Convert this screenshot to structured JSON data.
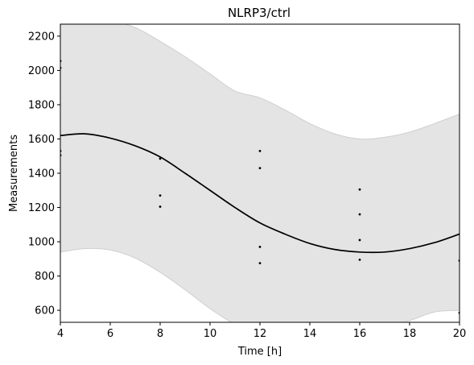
{
  "chart_data": {
    "type": "line",
    "title": "NLRP3/ctrl",
    "xlabel": "Time [h]",
    "ylabel": "Measurements",
    "xlim": [
      4,
      20
    ],
    "ylim": [
      530,
      2270
    ],
    "xticks": [
      "4",
      "6",
      "8",
      "10",
      "12",
      "14",
      "16",
      "18",
      "20"
    ],
    "yticks": [
      "600",
      "800",
      "1000",
      "1200",
      "1400",
      "1600",
      "1800",
      "2000",
      "2200"
    ],
    "grid": false,
    "colors": {
      "fit_line": "#000000",
      "band_fill": "#e4e4e4",
      "band_edge": "#cfcfcf",
      "points": "#000000"
    },
    "series": [
      {
        "type": "band",
        "x": [
          4,
          5,
          6,
          7,
          8,
          9,
          10,
          11,
          12,
          13,
          14,
          15,
          16,
          17,
          18,
          19,
          20
        ],
        "lower": [
          940,
          960,
          952,
          905,
          822,
          720,
          610,
          520,
          480,
          470,
          455,
          455,
          470,
          500,
          540,
          590,
          600
        ],
        "upper": [
          2290,
          2300,
          2290,
          2250,
          2170,
          2080,
          1980,
          1880,
          1840,
          1770,
          1690,
          1630,
          1600,
          1610,
          1640,
          1690,
          1745
        ]
      },
      {
        "type": "line",
        "x": [
          4,
          5,
          6,
          7,
          8,
          9,
          10,
          11,
          12,
          13,
          14,
          15,
          16,
          17,
          18,
          19,
          20
        ],
        "values": [
          1620,
          1630,
          1605,
          1560,
          1495,
          1400,
          1300,
          1200,
          1110,
          1045,
          990,
          955,
          940,
          940,
          960,
          995,
          1045
        ]
      },
      {
        "type": "scatter",
        "points": [
          [
            4,
            2055
          ],
          [
            4,
            2015
          ],
          [
            4,
            1530
          ],
          [
            4,
            1505
          ],
          [
            8,
            1485
          ],
          [
            8,
            1270
          ],
          [
            8,
            1205
          ],
          [
            12,
            1530
          ],
          [
            12,
            1430
          ],
          [
            12,
            970
          ],
          [
            12,
            875
          ],
          [
            16,
            1305
          ],
          [
            16,
            1160
          ],
          [
            16,
            1010
          ],
          [
            16,
            895
          ],
          [
            20,
            890
          ],
          [
            20,
            585
          ]
        ]
      }
    ]
  }
}
